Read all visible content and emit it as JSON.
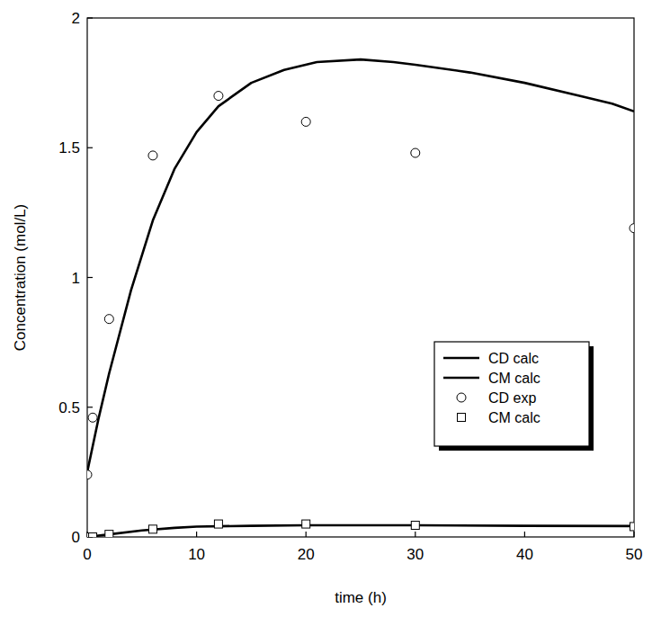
{
  "chart_data": {
    "type": "line",
    "x_label": "time (h)",
    "y_label": "Concentration (mol/L)",
    "xlim": [
      0,
      50
    ],
    "xticks": [
      0,
      10,
      20,
      30,
      40,
      50
    ],
    "ylim": [
      0,
      2
    ],
    "yticks": [
      0,
      0.5,
      1,
      1.5,
      2
    ],
    "grid": false,
    "legend": "right",
    "series": [
      {
        "name": "CD calc",
        "type": "line",
        "color": "#000000",
        "line_style": "solid",
        "x": [
          0,
          1,
          2,
          4,
          6,
          8,
          10,
          12,
          15,
          18,
          21,
          25,
          28,
          30,
          35,
          40,
          45,
          48,
          50
        ],
        "values": [
          0.25,
          0.45,
          0.63,
          0.95,
          1.22,
          1.42,
          1.56,
          1.66,
          1.75,
          1.8,
          1.83,
          1.84,
          1.83,
          1.82,
          1.79,
          1.75,
          1.7,
          1.67,
          1.64
        ]
      },
      {
        "name": "CM calc",
        "type": "line",
        "color": "#000000",
        "line_style": "solid",
        "x": [
          0,
          2,
          5,
          8,
          10,
          15,
          20,
          30,
          40,
          50
        ],
        "values": [
          0.0,
          0.01,
          0.025,
          0.035,
          0.04,
          0.043,
          0.045,
          0.045,
          0.043,
          0.042
        ]
      },
      {
        "name": "CD exp",
        "type": "scatter",
        "color": "#000000",
        "marker": "circle",
        "x": [
          0,
          0.5,
          2,
          6,
          12,
          20,
          30,
          50
        ],
        "values": [
          0.24,
          0.46,
          0.84,
          1.47,
          1.7,
          1.6,
          1.48,
          1.19
        ]
      },
      {
        "name": "CM calc",
        "type": "scatter",
        "color": "#000000",
        "marker": "square",
        "x": [
          0,
          0.5,
          2,
          6,
          12,
          20,
          30,
          50
        ],
        "values": [
          0.0,
          0.0,
          0.01,
          0.03,
          0.05,
          0.05,
          0.045,
          0.04
        ]
      }
    ]
  }
}
